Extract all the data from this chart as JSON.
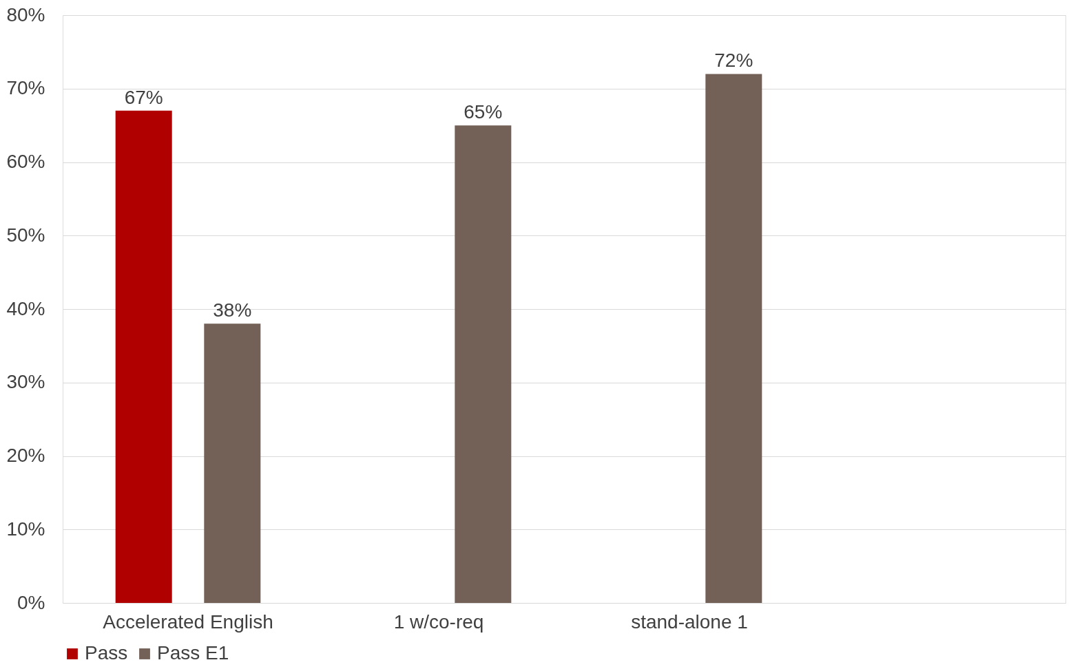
{
  "chart_data": {
    "type": "bar",
    "categories": [
      "Accelerated English",
      "1 w/co-req",
      "stand-alone 1",
      null
    ],
    "series": [
      {
        "name": "Pass",
        "color": "#b00000",
        "values": [
          67,
          null,
          null,
          null
        ]
      },
      {
        "name": "Pass E1",
        "color": "#736057",
        "values": [
          38,
          65,
          72,
          null
        ]
      }
    ],
    "ylim": [
      0,
      80
    ],
    "yticks": [
      {
        "value": 0,
        "label": "0%"
      },
      {
        "value": 10,
        "label": "10%"
      },
      {
        "value": 20,
        "label": "20%"
      },
      {
        "value": 30,
        "label": "30%"
      },
      {
        "value": 40,
        "label": "40%"
      },
      {
        "value": 50,
        "label": "50%"
      },
      {
        "value": 60,
        "label": "60%"
      },
      {
        "value": 70,
        "label": "70%"
      },
      {
        "value": 80,
        "label": "80%"
      }
    ],
    "value_labels": [
      [
        "67%",
        null,
        null,
        null
      ],
      [
        "38%",
        "65%",
        "72%",
        null
      ]
    ],
    "grid": "y",
    "legend": "bottom"
  }
}
